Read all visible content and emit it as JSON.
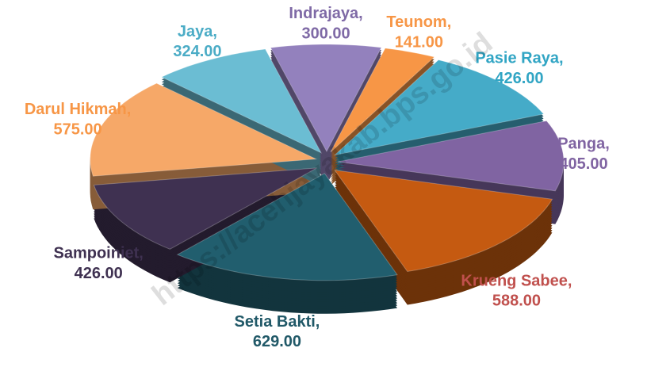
{
  "chart_data": {
    "type": "pie",
    "exploded": true,
    "three_d": true,
    "categories": [
      "Indrajaya",
      "Teunom",
      "Pasie Raya",
      "Panga",
      "Krueng Sabee",
      "Setia Bakti",
      "Sampoiniet",
      "Darul Hikmah",
      "Jaya"
    ],
    "values": [
      300,
      141,
      426,
      405,
      588,
      629,
      426,
      575,
      324
    ],
    "value_labels": [
      "300.00",
      "141.00",
      "426.00",
      "405.00",
      "588.00",
      "629.00",
      "426.00",
      "575.00",
      "324.00"
    ],
    "label_separator": ",",
    "colors": [
      "#9381bd",
      "#f79646",
      "#45abc8",
      "#8064a2",
      "#c55a11",
      "#215e6e",
      "#3f3151",
      "#f6a868",
      "#6bbdd3"
    ],
    "label_colors": [
      "#7f6aa6",
      "#f79646",
      "#31a5c4",
      "#8064a2",
      "#c0504d",
      "#215968",
      "#3f3151",
      "#f79646",
      "#4bacc6"
    ],
    "watermark": "https://acehjayakab.bps.go.id"
  }
}
